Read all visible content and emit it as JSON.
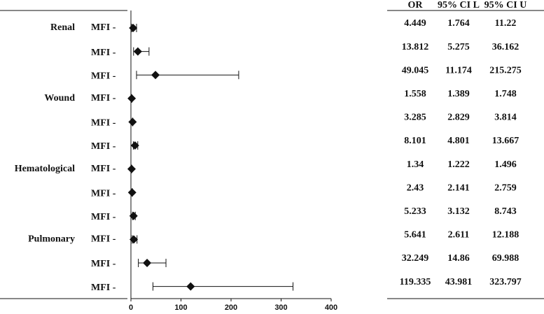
{
  "chart_data": {
    "type": "forest",
    "groups": [
      "Renal",
      null,
      null,
      "Wound",
      null,
      null,
      "Hematological",
      null,
      null,
      "Pulmonary",
      null,
      null
    ],
    "labels": [
      "MFI -",
      "MFI -",
      "MFI -",
      "MFI -",
      "MFI -",
      "MFI -",
      "MFI -",
      "MFI -",
      "MFI -",
      "MFI -",
      "MFI -",
      "MFI -"
    ],
    "series": [
      {
        "name": "OR",
        "values": [
          4.449,
          13.812,
          49.045,
          1.558,
          3.285,
          8.101,
          1.34,
          2.43,
          5.233,
          5.641,
          32.249,
          119.335
        ]
      },
      {
        "name": "95% CI L",
        "values": [
          1.764,
          5.275,
          11.174,
          1.389,
          2.829,
          4.801,
          1.222,
          2.141,
          3.132,
          2.611,
          14.86,
          43.981
        ]
      },
      {
        "name": "95% CI U",
        "values": [
          11.22,
          36.162,
          215.275,
          1.748,
          3.814,
          13.667,
          1.496,
          2.759,
          8.743,
          12.188,
          69.988,
          323.797
        ]
      }
    ],
    "color": "#111111",
    "xlim": [
      0,
      400
    ],
    "xticks": [
      0,
      100,
      200,
      300,
      400
    ]
  }
}
